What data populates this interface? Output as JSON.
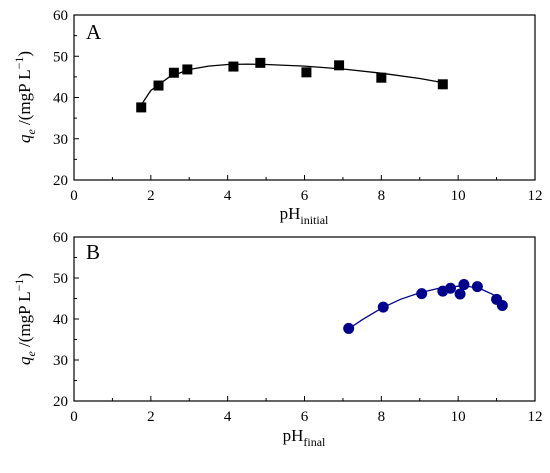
{
  "chart_data": [
    {
      "type": "scatter",
      "panel_label": "A",
      "marker": "square",
      "color": "#000000",
      "xlabel": {
        "main": "pH",
        "sub": "initial"
      },
      "ylabel": {
        "q": "q",
        "sub": "e",
        "unit": " /(mgP L",
        "exp": "−1",
        "close": ")"
      },
      "xlim": [
        0,
        12
      ],
      "ylim": [
        20,
        60
      ],
      "xticks": [
        0,
        2,
        4,
        6,
        8,
        10,
        12
      ],
      "yticks": [
        20,
        30,
        40,
        50,
        60
      ],
      "tick_labels_x": [
        "0",
        "2",
        "4",
        "6",
        "8",
        "10",
        "12"
      ],
      "tick_labels_y": [
        "20",
        "30",
        "40",
        "50",
        "60"
      ],
      "x": [
        1.75,
        2.2,
        2.6,
        2.95,
        4.15,
        4.85,
        6.05,
        6.9,
        8.0,
        9.6
      ],
      "y": [
        37.6,
        42.9,
        46.0,
        46.8,
        47.5,
        48.4,
        46.1,
        47.8,
        44.8,
        43.2
      ],
      "fit": {
        "x": [
          1.7,
          2.0,
          2.5,
          3.0,
          3.5,
          4.0,
          4.5,
          5.0,
          6.0,
          7.0,
          8.0,
          9.0,
          9.6
        ],
        "y": [
          37.5,
          41.7,
          45.1,
          46.8,
          47.6,
          48.0,
          48.1,
          48.0,
          47.6,
          46.9,
          45.9,
          44.6,
          43.6
        ]
      },
      "grid": false,
      "legend": null
    },
    {
      "type": "scatter",
      "panel_label": "B",
      "marker": "circle",
      "color": "#00008B",
      "xlabel": {
        "main": "pH",
        "sub": "final"
      },
      "ylabel": {
        "q": "q",
        "sub": "e",
        "unit": " /(mgP L",
        "exp": "−1",
        "close": ")"
      },
      "xlim": [
        0,
        12
      ],
      "ylim": [
        20,
        60
      ],
      "xticks": [
        0,
        2,
        4,
        6,
        8,
        10,
        12
      ],
      "yticks": [
        20,
        30,
        40,
        50,
        60
      ],
      "tick_labels_x": [
        "0",
        "2",
        "4",
        "6",
        "8",
        "10",
        "12"
      ],
      "tick_labels_y": [
        "20",
        "30",
        "40",
        "50",
        "60"
      ],
      "x": [
        7.15,
        8.05,
        9.05,
        9.6,
        9.8,
        10.05,
        10.15,
        10.5,
        11.0,
        11.15
      ],
      "y": [
        37.7,
        42.9,
        46.2,
        46.8,
        47.5,
        46.1,
        48.4,
        47.9,
        44.8,
        43.3
      ],
      "fit": {
        "x": [
          7.15,
          7.5,
          8.0,
          8.5,
          9.0,
          9.5,
          10.0,
          10.3,
          10.6,
          10.9,
          11.15
        ],
        "y": [
          37.6,
          39.8,
          42.6,
          44.8,
          46.4,
          47.5,
          48.0,
          47.9,
          47.3,
          46.0,
          44.3
        ]
      },
      "grid": false,
      "legend": null
    }
  ]
}
